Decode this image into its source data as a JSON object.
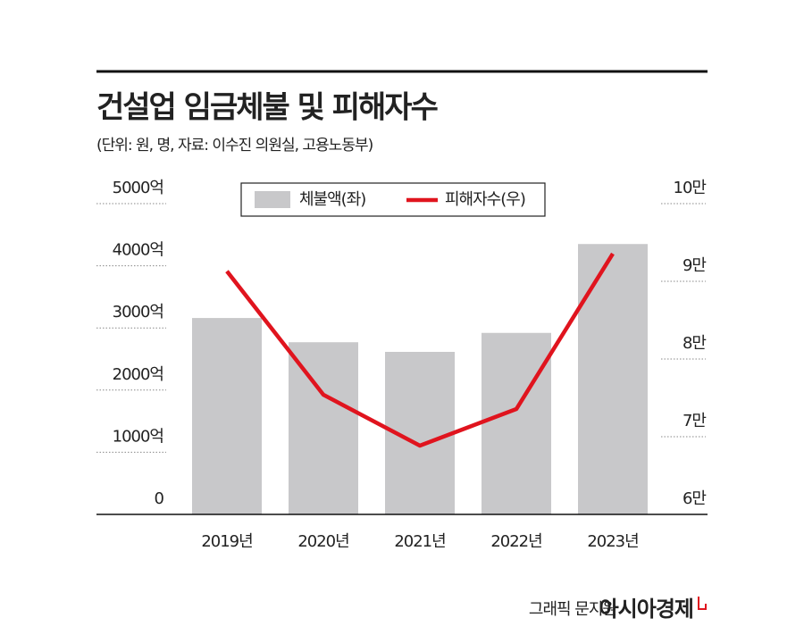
{
  "chart_data": {
    "type": "combo",
    "title": "건설업 임금체불 및 피해자수",
    "subtitle": "(단위: 원, 명, 자료: 이수진 의원실, 고용노동부)",
    "categories": [
      "2019년",
      "2020년",
      "2021년",
      "2022년",
      "2023년"
    ],
    "series": [
      {
        "name": "체불액(좌)",
        "type": "bar",
        "color": "#c8c8ca",
        "values": [
          3160,
          2770,
          2615,
          2920,
          4350
        ]
      },
      {
        "name": "피해자수(우)",
        "type": "line",
        "axis": "y2",
        "color": "#e0141e",
        "values": [
          91300,
          75400,
          68850,
          73560,
          93560
        ]
      }
    ],
    "ylim": [
      0,
      5000
    ],
    "yticks": [
      0,
      {
        "value": 1000,
        "label": "1000억"
      },
      {
        "value": 2000,
        "label": "2000억"
      },
      {
        "value": 3000,
        "label": "3000억"
      },
      {
        "value": 4000,
        "label": "4000억"
      },
      {
        "value": 5000,
        "label": "5000억"
      }
    ],
    "y2lim": [
      60000,
      100000
    ],
    "y2ticks": [
      {
        "value": 60000,
        "label": "6만"
      },
      {
        "value": 70000,
        "label": "7만"
      },
      {
        "value": 80000,
        "label": "8만"
      },
      {
        "value": 90000,
        "label": "9만"
      },
      {
        "value": 100000,
        "label": "10만"
      }
    ],
    "grid": true,
    "credit": "그래픽 문지원",
    "publisher": "아시아경제"
  }
}
